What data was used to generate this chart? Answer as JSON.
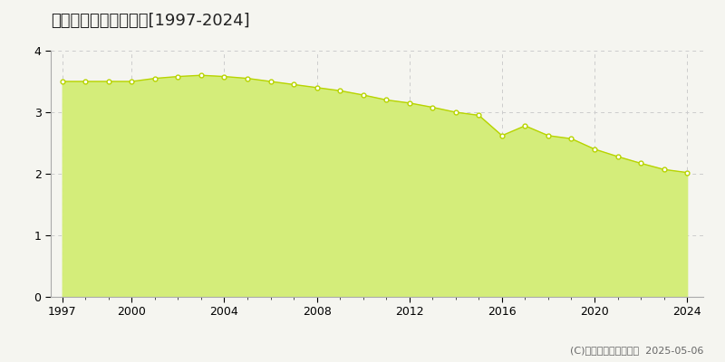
{
  "title": "幌延町　基準地価推移[1997-2024]",
  "years": [
    1997,
    1998,
    1999,
    2000,
    2001,
    2002,
    2003,
    2004,
    2005,
    2006,
    2007,
    2008,
    2009,
    2010,
    2011,
    2012,
    2013,
    2014,
    2015,
    2016,
    2017,
    2018,
    2019,
    2020,
    2021,
    2022,
    2023,
    2024
  ],
  "values": [
    3.5,
    3.5,
    3.5,
    3.5,
    3.55,
    3.58,
    3.6,
    3.58,
    3.55,
    3.5,
    3.45,
    3.4,
    3.35,
    3.28,
    3.2,
    3.15,
    3.08,
    3.0,
    2.95,
    2.62,
    2.78,
    2.62,
    2.57,
    2.4,
    2.28,
    2.17,
    2.07,
    2.02
  ],
  "fill_color": "#d4ed7a",
  "line_color": "#b8d400",
  "marker_facecolor": "#ffffff",
  "marker_edgecolor": "#b8d400",
  "background_color": "#f5f5f0",
  "plot_bg_color": "#f5f5f0",
  "grid_color": "#cccccc",
  "ylim": [
    0,
    4
  ],
  "yticks": [
    0,
    1,
    2,
    3,
    4
  ],
  "xticks": [
    1997,
    2000,
    2004,
    2008,
    2012,
    2016,
    2020,
    2024
  ],
  "legend_color": "#c8dc50",
  "copyright_text": "(C)土地価格ドットコム  2025-05-06",
  "title_fontsize": 13,
  "tick_fontsize": 9,
  "legend_fontsize": 9,
  "copyright_fontsize": 8
}
